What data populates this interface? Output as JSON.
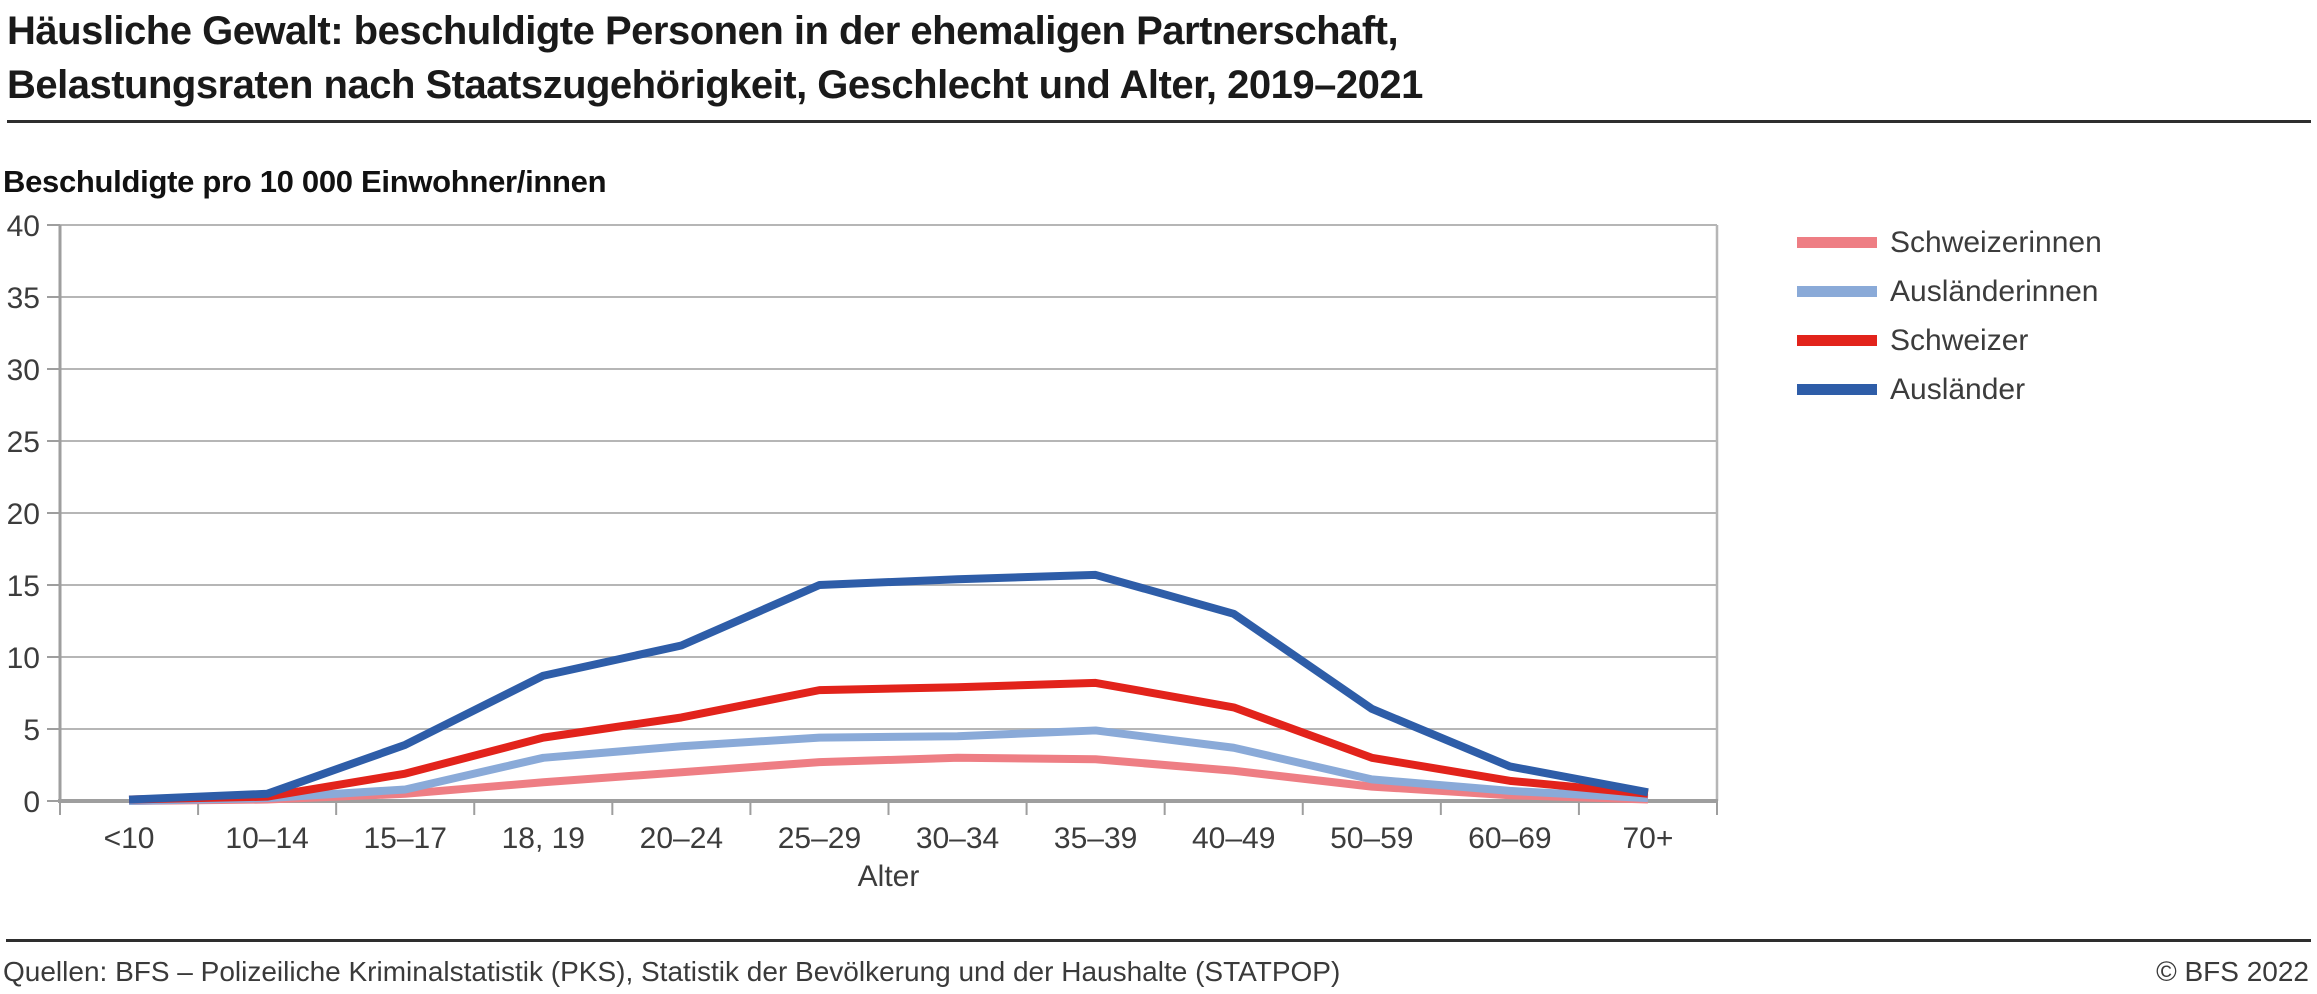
{
  "title": {
    "line1": "Häusliche Gewalt: beschuldigte Personen in der ehemaligen Partnerschaft,",
    "line2": "Belastungsraten nach Staatszugehörigkeit, Geschlecht und Alter, 2019–2021"
  },
  "footer": {
    "source": "Quellen: BFS – Polizeiliche Kriminalstatistik (PKS), Statistik der Bevölkerung und der Haushalte (STATPOP)",
    "copyright": "© BFS 2022"
  },
  "chart_data": {
    "type": "line",
    "title": "Häusliche Gewalt: beschuldigte Personen in der ehemaligen Partnerschaft, Belastungsraten nach Staatszugehörigkeit, Geschlecht und Alter, 2019–2021",
    "ylabel": "Beschuldigte pro 10 000 Einwohner/innen",
    "xlabel": "Alter",
    "categories": [
      "<10",
      "10–14",
      "15–17",
      "18, 19",
      "20–24",
      "25–29",
      "30–34",
      "35–39",
      "40–49",
      "50–59",
      "60–69",
      "70+"
    ],
    "ylim": [
      0,
      40
    ],
    "ytick_step": 5,
    "grid": true,
    "legend_position": "right",
    "series": [
      {
        "name": "Schweizerinnen",
        "color": "#ee7e84",
        "values": [
          0.0,
          0.1,
          0.5,
          1.3,
          2.0,
          2.7,
          3.0,
          2.9,
          2.1,
          1.0,
          0.4,
          0.1
        ]
      },
      {
        "name": "Ausländerinnen",
        "color": "#8aaad8",
        "values": [
          0.0,
          0.2,
          0.8,
          3.0,
          3.8,
          4.4,
          4.5,
          4.9,
          3.7,
          1.5,
          0.7,
          0.2
        ]
      },
      {
        "name": "Schweizer",
        "color": "#e2231b",
        "values": [
          0.1,
          0.3,
          1.9,
          4.4,
          5.8,
          7.7,
          7.9,
          8.2,
          6.5,
          3.0,
          1.4,
          0.5
        ]
      },
      {
        "name": "Ausländer",
        "color": "#2e5da8",
        "values": [
          0.1,
          0.5,
          3.9,
          8.7,
          10.8,
          15.0,
          15.4,
          15.7,
          13.0,
          6.4,
          2.4,
          0.6
        ]
      }
    ],
    "axis_colors": {
      "gridline": "#b6b6b6",
      "axis": "#9e9e9e",
      "tick_text": "#3c3c3c"
    }
  }
}
